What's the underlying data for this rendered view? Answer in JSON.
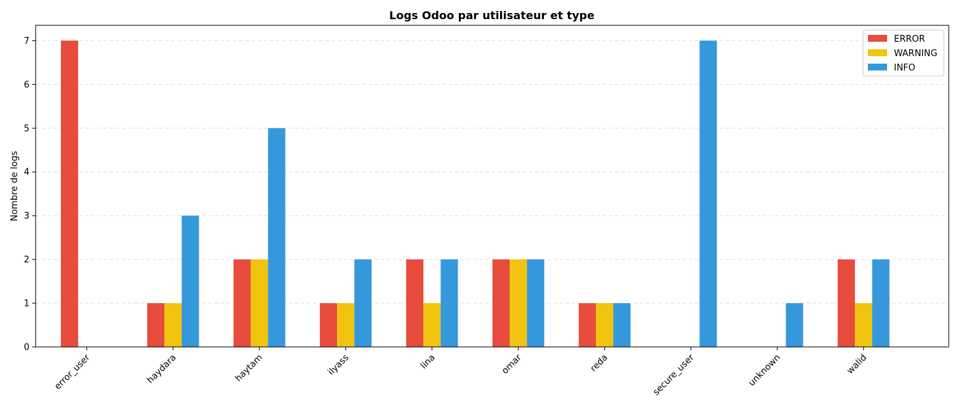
{
  "chart_data": {
    "type": "bar",
    "title": "Logs Odoo par utilisateur et type",
    "xlabel": "",
    "ylabel": "Nombre de logs",
    "categories": [
      "error_user",
      "haydara",
      "haytam",
      "ilyass",
      "lina",
      "omar",
      "reda",
      "secure_user",
      "unknown",
      "walid"
    ],
    "series": [
      {
        "name": "ERROR",
        "color": "#e74c3c",
        "values": [
          7,
          1,
          2,
          1,
          2,
          2,
          1,
          0,
          0,
          2
        ]
      },
      {
        "name": "WARNING",
        "color": "#f1c40f",
        "values": [
          0,
          1,
          2,
          1,
          1,
          2,
          1,
          0,
          0,
          1
        ]
      },
      {
        "name": "INFO",
        "color": "#3498db",
        "values": [
          0,
          3,
          5,
          2,
          2,
          2,
          1,
          7,
          1,
          2
        ]
      }
    ],
    "ylim": [
      0,
      7.35
    ],
    "yticks": [
      0,
      1,
      2,
      3,
      4,
      5,
      6,
      7
    ],
    "grid": "y dashed",
    "legend_position": "top-right"
  }
}
